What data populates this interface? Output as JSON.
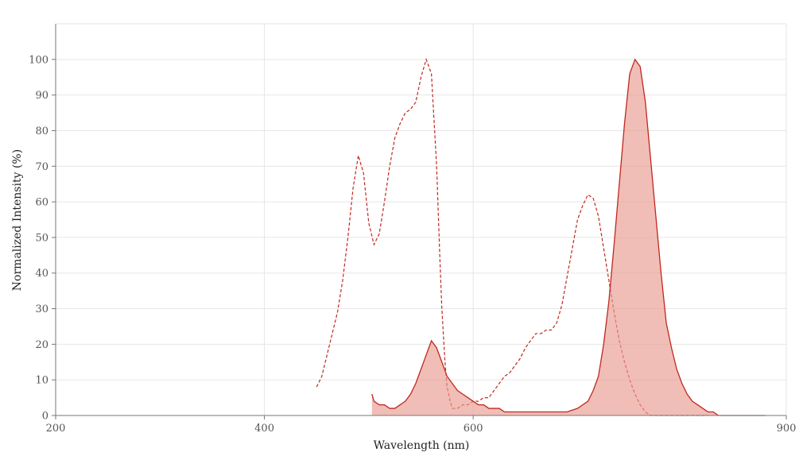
{
  "chart_data": {
    "type": "area",
    "title": "",
    "xlabel": "Wavelength (nm)",
    "ylabel": "Normalized Intensity (%)",
    "xlim": [
      200,
      900
    ],
    "ylim": [
      0,
      110
    ],
    "x_ticks": [
      200,
      400,
      600,
      900
    ],
    "y_ticks": [
      0,
      10,
      20,
      30,
      40,
      50,
      60,
      70,
      80,
      90,
      100
    ],
    "grid": true,
    "legend": "none",
    "colors": {
      "line": "#c0281e",
      "fill": "#e99a90"
    },
    "series": [
      {
        "style": "dashed",
        "x": [
          450,
          455,
          460,
          465,
          470,
          475,
          480,
          485,
          490,
          495,
          500,
          505,
          510,
          515,
          520,
          525,
          530,
          535,
          540,
          545,
          550,
          555,
          560,
          565,
          568,
          570,
          573,
          575,
          578,
          580,
          585,
          590,
          595,
          600,
          605,
          610,
          615,
          620,
          625,
          630,
          635,
          640,
          645,
          650,
          655,
          660,
          665,
          670,
          675,
          680,
          685,
          690,
          695,
          700,
          705,
          710,
          715,
          720,
          725,
          730,
          735,
          740,
          745,
          750,
          755,
          760,
          765,
          770,
          775,
          780,
          785,
          790,
          795,
          800,
          805,
          810,
          815,
          820,
          825
        ],
        "y": [
          8,
          11,
          17,
          23,
          29,
          38,
          50,
          64,
          73,
          68,
          54,
          48,
          51,
          60,
          70,
          78,
          82,
          85,
          86,
          88,
          95,
          100,
          96,
          70,
          45,
          30,
          15,
          8,
          4,
          2,
          2,
          3,
          3,
          4,
          4,
          5,
          5,
          7,
          9,
          11,
          12,
          14,
          16,
          19,
          21,
          23,
          23,
          24,
          24,
          26,
          31,
          39,
          47,
          55,
          59,
          62,
          61,
          56,
          47,
          38,
          29,
          21,
          15,
          10,
          6,
          3,
          1,
          0,
          0,
          0,
          0,
          0,
          0,
          0,
          0,
          0,
          0,
          0,
          0
        ]
      },
      {
        "style": "filled",
        "x": [
          503,
          505,
          510,
          515,
          520,
          525,
          530,
          535,
          540,
          545,
          550,
          555,
          560,
          565,
          570,
          575,
          580,
          585,
          590,
          595,
          600,
          605,
          610,
          615,
          620,
          625,
          630,
          635,
          640,
          645,
          650,
          655,
          660,
          670,
          680,
          690,
          700,
          710,
          715,
          720,
          725,
          730,
          735,
          740,
          745,
          750,
          755,
          760,
          765,
          770,
          775,
          780,
          785,
          790,
          795,
          800,
          805,
          810,
          815,
          820,
          825,
          830,
          835,
          840,
          845,
          850,
          855,
          860,
          865,
          870,
          875,
          880
        ],
        "y": [
          6,
          4,
          3,
          3,
          2,
          2,
          3,
          4,
          6,
          9,
          13,
          17,
          21,
          19,
          15,
          11,
          9,
          7,
          6,
          5,
          4,
          3,
          3,
          2,
          2,
          2,
          1,
          1,
          1,
          1,
          1,
          1,
          1,
          1,
          1,
          1,
          2,
          4,
          7,
          11,
          20,
          32,
          48,
          65,
          82,
          96,
          100,
          98,
          88,
          72,
          56,
          40,
          26,
          19,
          13,
          9,
          6,
          4,
          3,
          2,
          1,
          1,
          0,
          0,
          0,
          0,
          0,
          0,
          0,
          0,
          0,
          0
        ]
      }
    ]
  }
}
